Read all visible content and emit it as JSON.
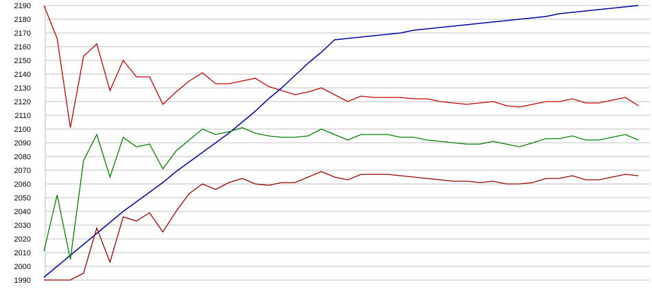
{
  "chart_data": {
    "type": "line",
    "title": "",
    "xlabel": "",
    "ylabel": "",
    "x": [
      0,
      1,
      2,
      3,
      4,
      5,
      6,
      7,
      8,
      9,
      10,
      11,
      12,
      13,
      14,
      15,
      16,
      17,
      18,
      19,
      20,
      21,
      22,
      23,
      24,
      25,
      26,
      27,
      28,
      29,
      30,
      31,
      32,
      33,
      34,
      35,
      36,
      37,
      38,
      39,
      40,
      41,
      42,
      43,
      44,
      45
    ],
    "ylim": [
      1990,
      2190
    ],
    "ytick_step": 10,
    "yticks": [
      2190,
      2180,
      2170,
      2160,
      2150,
      2140,
      2130,
      2120,
      2110,
      2100,
      2090,
      2080,
      2070,
      2060,
      2050,
      2040,
      2030,
      2020,
      2010,
      2000,
      1990
    ],
    "grid": true,
    "legend_position": "none",
    "grid_color": "#c0c0c0",
    "background_color": "#ffffff",
    "text_color": "#000000",
    "series": [
      {
        "name": "upper-red",
        "color": "#c00000",
        "width": 1.3,
        "values": [
          2190,
          2166,
          2101,
          2153,
          2162,
          2128,
          2150,
          2138,
          2138,
          2118,
          2127,
          2135,
          2141,
          2133,
          2133,
          2135,
          2137,
          2131,
          2128,
          2125,
          2127,
          2130,
          2125,
          2120,
          2124,
          2123,
          2123,
          2123,
          2122,
          2122,
          2120,
          2119,
          2118,
          2119,
          2120,
          2117,
          2116,
          2118,
          2120,
          2120,
          2122,
          2119,
          2119,
          2121,
          2123,
          2117
        ]
      },
      {
        "name": "blue",
        "color": "#0000a0",
        "width": 1.5,
        "values": [
          1992,
          2000,
          2008,
          2016,
          2024,
          2032,
          2040,
          2047,
          2054,
          2061,
          2069,
          2076,
          2083,
          2090,
          2097,
          2105,
          2113,
          2122,
          2130,
          2139,
          2148,
          2156,
          2165,
          2166,
          2167,
          2168,
          2169,
          2170,
          2172,
          2173,
          2174,
          2175,
          2176,
          2177,
          2178,
          2179,
          2180,
          2181,
          2182,
          2184,
          2185,
          2186,
          2187,
          2188,
          2189,
          2190
        ]
      },
      {
        "name": "green",
        "color": "#008000",
        "width": 1.3,
        "values": [
          2011,
          2052,
          2005,
          2077,
          2096,
          2065,
          2094,
          2087,
          2089,
          2071,
          2084,
          2092,
          2100,
          2096,
          2098,
          2101,
          2097,
          2095,
          2094,
          2094,
          2095,
          2100,
          2096,
          2092,
          2096,
          2096,
          2096,
          2094,
          2094,
          2092,
          2091,
          2090,
          2089,
          2089,
          2091,
          2089,
          2087,
          2090,
          2093,
          2093,
          2095,
          2092,
          2092,
          2094,
          2096,
          2092
        ]
      },
      {
        "name": "lower-red",
        "color": "#990000",
        "width": 1.3,
        "values": [
          1990,
          1990,
          1990,
          1995,
          2028,
          2003,
          2036,
          2033,
          2039,
          2025,
          2040,
          2053,
          2060,
          2056,
          2061,
          2064,
          2060,
          2059,
          2061,
          2061,
          2065,
          2069,
          2065,
          2063,
          2067,
          2067,
          2067,
          2066,
          2065,
          2064,
          2063,
          2062,
          2062,
          2061,
          2062,
          2060,
          2060,
          2061,
          2064,
          2064,
          2066,
          2063,
          2063,
          2065,
          2067,
          2066
        ]
      }
    ]
  }
}
